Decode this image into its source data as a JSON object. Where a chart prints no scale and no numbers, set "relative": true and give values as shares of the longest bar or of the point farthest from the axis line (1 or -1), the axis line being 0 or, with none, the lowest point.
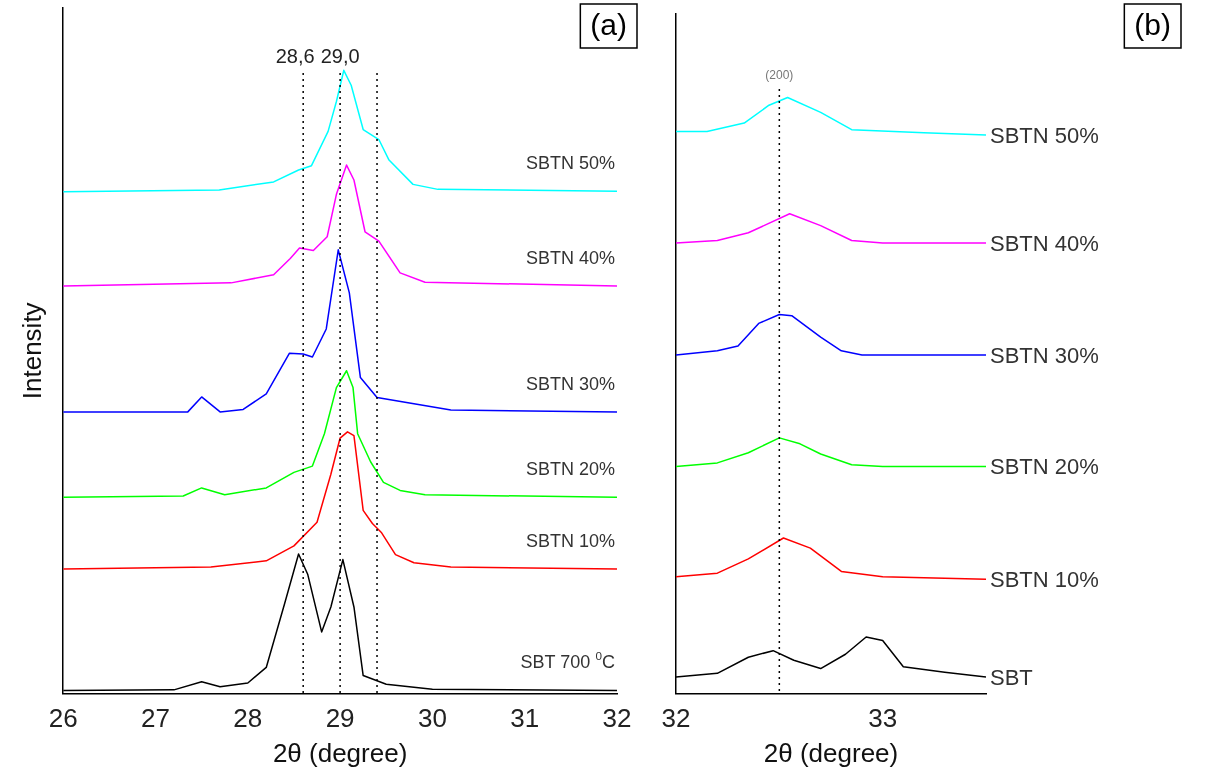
{
  "chart_data": [
    {
      "type": "line",
      "relative": true,
      "xlabel": "2θ (degree)",
      "ylabel": "Intensity",
      "xlim": [
        26,
        32
      ],
      "xticks": [
        26,
        27,
        28,
        29,
        30,
        31,
        32
      ],
      "grid": false,
      "legend": false,
      "marker": "none",
      "line_style": "solid",
      "annotations": [
        "(a)"
      ],
      "ref_lines": [
        {
          "axis": "x",
          "value": 28.6,
          "label": "28,6",
          "line_style": "dotted",
          "color": "#000000"
        },
        {
          "axis": "x",
          "value": 29.0,
          "label": "29,0",
          "line_style": "dotted",
          "color": "#000000"
        },
        {
          "axis": "x",
          "value": 29.4,
          "label": null,
          "line_style": "dotted",
          "color": "#000000"
        }
      ],
      "series": [
        {
          "name": "SBTN 50%",
          "color": "#00ffff",
          "x": [
            26,
            27.69,
            28.28,
            28.55,
            28.69,
            28.87,
            28.96,
            29.04,
            29.12,
            29.25,
            29.42,
            29.53,
            29.79,
            30.06,
            32
          ],
          "values": [
            0.805,
            0.808,
            0.821,
            0.84,
            0.847,
            0.902,
            0.95,
            1.0,
            0.976,
            0.905,
            0.889,
            0.856,
            0.817,
            0.809,
            0.806
          ]
        },
        {
          "name": "SBTN 40%",
          "color": "#ff00ff",
          "x": [
            26,
            27.82,
            28.28,
            28.46,
            28.56,
            28.71,
            28.86,
            28.96,
            29.07,
            29.15,
            29.27,
            29.42,
            29.65,
            29.92,
            32
          ],
          "values": [
            0.654,
            0.659,
            0.672,
            0.698,
            0.715,
            0.711,
            0.733,
            0.801,
            0.848,
            0.824,
            0.741,
            0.726,
            0.675,
            0.66,
            0.654
          ]
        },
        {
          "name": "SBTN 30%",
          "color": "#0000ff",
          "x": [
            26,
            27.35,
            27.5,
            27.7,
            27.95,
            28.2,
            28.45,
            28.6,
            28.7,
            28.85,
            28.98,
            29.1,
            29.22,
            29.4,
            29.8,
            30.2,
            32
          ],
          "values": [
            0.452,
            0.452,
            0.476,
            0.452,
            0.456,
            0.481,
            0.546,
            0.545,
            0.54,
            0.585,
            0.712,
            0.643,
            0.507,
            0.475,
            0.465,
            0.455,
            0.452
          ]
        },
        {
          "name": "SBTN 20%",
          "color": "#00ff00",
          "x": [
            26,
            27.3,
            27.5,
            27.75,
            28.2,
            28.5,
            28.7,
            28.83,
            28.96,
            29.07,
            29.14,
            29.19,
            29.33,
            29.47,
            29.65,
            29.92,
            32
          ],
          "values": [
            0.315,
            0.317,
            0.33,
            0.319,
            0.33,
            0.355,
            0.365,
            0.417,
            0.491,
            0.518,
            0.491,
            0.417,
            0.372,
            0.339,
            0.326,
            0.319,
            0.315
          ]
        },
        {
          "name": "SBTN 10%",
          "color": "#ff0000",
          "x": [
            26,
            27.6,
            28.2,
            28.5,
            28.75,
            28.9,
            29.0,
            29.08,
            29.15,
            29.25,
            29.35,
            29.45,
            29.6,
            29.8,
            30.2,
            32
          ],
          "values": [
            0.2,
            0.203,
            0.213,
            0.237,
            0.275,
            0.352,
            0.41,
            0.42,
            0.414,
            0.294,
            0.273,
            0.258,
            0.223,
            0.21,
            0.203,
            0.2
          ]
        },
        {
          "name": "SBT 700 $^{0}$C",
          "color": "#000000",
          "x": [
            26,
            27.2,
            27.5,
            27.7,
            28.0,
            28.2,
            28.4,
            28.55,
            28.65,
            28.8,
            28.9,
            29.03,
            29.15,
            29.25,
            29.5,
            30,
            32
          ],
          "values": [
            0.005,
            0.006,
            0.019,
            0.011,
            0.017,
            0.042,
            0.145,
            0.224,
            0.191,
            0.099,
            0.139,
            0.215,
            0.139,
            0.029,
            0.015,
            0.007,
            0.005
          ]
        }
      ]
    },
    {
      "type": "line",
      "relative": true,
      "xlabel": "2θ (degree)",
      "xlim": [
        32,
        33.5
      ],
      "xticks": [
        32,
        33
      ],
      "grid": false,
      "legend": false,
      "marker": "none",
      "line_style": "solid",
      "annotations": [
        "(b)",
        "(200)"
      ],
      "ref_lines": [
        {
          "axis": "x",
          "value": 32.5,
          "label": null,
          "line_style": "dotted",
          "color": "#000000"
        }
      ],
      "series": [
        {
          "name": "SBTN 50%",
          "color": "#00ffff",
          "x": [
            32,
            32.15,
            32.33,
            32.45,
            32.54,
            32.7,
            32.85,
            33.2,
            33.5
          ],
          "values": [
            0.943,
            0.943,
            0.957,
            0.987,
            1.0,
            0.975,
            0.946,
            0.941,
            0.937
          ]
        },
        {
          "name": "SBTN 40%",
          "color": "#ff00ff",
          "x": [
            32,
            32.2,
            32.35,
            32.55,
            32.7,
            32.85,
            33.0,
            33.5
          ],
          "values": [
            0.756,
            0.76,
            0.773,
            0.805,
            0.785,
            0.76,
            0.756,
            0.756
          ]
        },
        {
          "name": "SBTN 30%",
          "color": "#0000ff",
          "x": [
            32,
            32.2,
            32.3,
            32.4,
            32.5,
            32.56,
            32.7,
            32.8,
            32.9,
            33.5
          ],
          "values": [
            0.568,
            0.575,
            0.583,
            0.621,
            0.636,
            0.634,
            0.598,
            0.575,
            0.568,
            0.568
          ]
        },
        {
          "name": "SBTN 20%",
          "color": "#00ff00",
          "x": [
            32,
            32.2,
            32.35,
            32.5,
            32.6,
            32.7,
            32.85,
            33.0,
            33.5
          ],
          "values": [
            0.381,
            0.387,
            0.404,
            0.429,
            0.419,
            0.402,
            0.384,
            0.381,
            0.381
          ]
        },
        {
          "name": "SBTN 10%",
          "color": "#ff0000",
          "x": [
            32,
            32.2,
            32.35,
            32.52,
            32.65,
            32.8,
            33.0,
            33.5
          ],
          "values": [
            0.196,
            0.202,
            0.226,
            0.261,
            0.244,
            0.205,
            0.196,
            0.192
          ]
        },
        {
          "name": "SBT",
          "color": "#000000",
          "x": [
            32,
            32.2,
            32.35,
            32.47,
            32.57,
            32.7,
            32.82,
            32.92,
            33.0,
            33.1,
            33.3,
            33.5
          ],
          "values": [
            0.028,
            0.034,
            0.061,
            0.072,
            0.056,
            0.042,
            0.066,
            0.095,
            0.089,
            0.045,
            0.036,
            0.028
          ]
        }
      ]
    }
  ]
}
